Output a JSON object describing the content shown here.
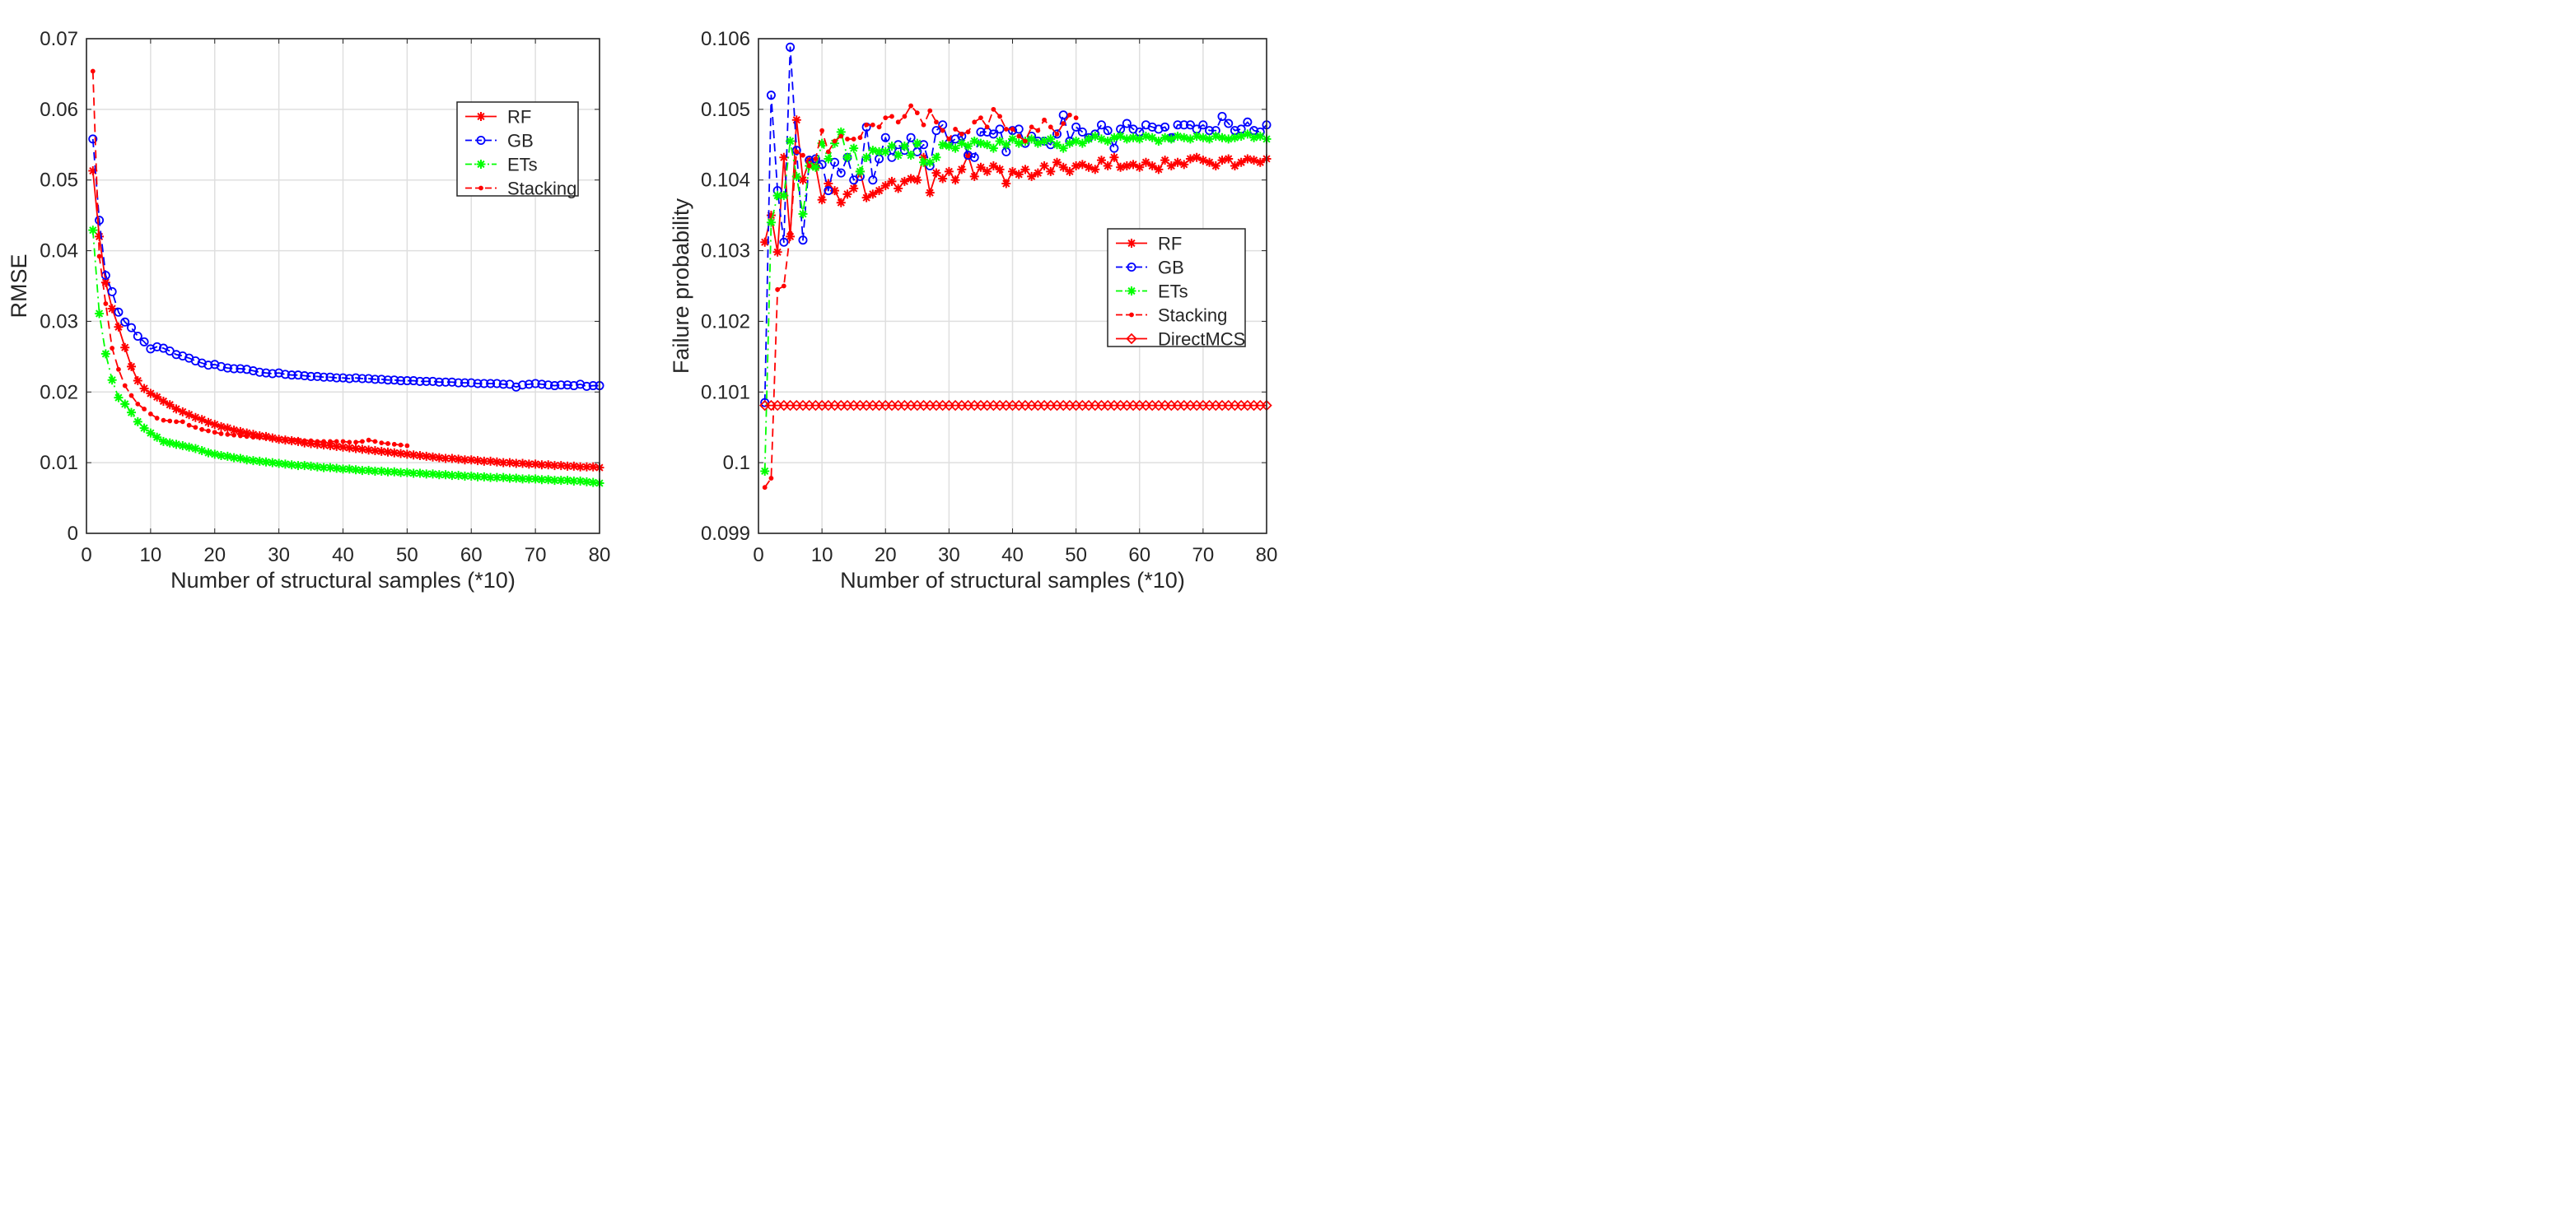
{
  "chart_data": [
    {
      "type": "line",
      "title": "",
      "xlabel": "Number of structural samples (*10)",
      "ylabel": "RMSE",
      "xlim": [
        0,
        80
      ],
      "ylim": [
        0,
        0.07
      ],
      "xticks": [
        0,
        10,
        20,
        30,
        40,
        50,
        60,
        70,
        80
      ],
      "xtick_labels": [
        "0",
        "10",
        "20",
        "30",
        "40",
        "50",
        "60",
        "70",
        "80"
      ],
      "yticks": [
        0,
        0.01,
        0.02,
        0.03,
        0.04,
        0.05,
        0.06,
        0.07
      ],
      "ytick_labels": [
        "0",
        "0.01",
        "0.02",
        "0.03",
        "0.04",
        "0.05",
        "0.06",
        "0.07"
      ],
      "grid": true,
      "legend_position": "top-right",
      "series": [
        {
          "name": "RF",
          "color": "#ff0000",
          "line": "solid",
          "marker": "asterisk",
          "x_start": 1,
          "values": [
            0.0513,
            0.042,
            0.0355,
            0.0318,
            0.0292,
            0.0263,
            0.0236,
            0.0216,
            0.0205,
            0.0198,
            0.0193,
            0.0187,
            0.0182,
            0.0176,
            0.0172,
            0.0168,
            0.0164,
            0.0161,
            0.0157,
            0.0154,
            0.0151,
            0.0149,
            0.0146,
            0.0144,
            0.0142,
            0.014,
            0.0138,
            0.0137,
            0.0135,
            0.0133,
            0.0132,
            0.0131,
            0.013,
            0.0128,
            0.0127,
            0.0126,
            0.0125,
            0.0124,
            0.0123,
            0.0122,
            0.0121,
            0.012,
            0.0119,
            0.0118,
            0.0117,
            0.0116,
            0.0115,
            0.0114,
            0.0113,
            0.0112,
            0.0111,
            0.011,
            0.0109,
            0.0108,
            0.0107,
            0.0106,
            0.0106,
            0.0105,
            0.0104,
            0.0104,
            0.0103,
            0.0102,
            0.0102,
            0.0101,
            0.01,
            0.01,
            0.0099,
            0.0099,
            0.0098,
            0.0098,
            0.0097,
            0.0097,
            0.0096,
            0.0096,
            0.0095,
            0.0095,
            0.0094,
            0.0094,
            0.0094,
            0.0093
          ]
        },
        {
          "name": "GB",
          "color": "#0000ff",
          "line": "dashed",
          "marker": "circle",
          "x_start": 1,
          "values": [
            0.0558,
            0.0443,
            0.0365,
            0.0342,
            0.0313,
            0.0299,
            0.0291,
            0.0279,
            0.0271,
            0.0261,
            0.0264,
            0.0262,
            0.0258,
            0.0253,
            0.0251,
            0.0248,
            0.0244,
            0.0241,
            0.0238,
            0.0239,
            0.0236,
            0.0234,
            0.0233,
            0.0233,
            0.0232,
            0.023,
            0.0228,
            0.0227,
            0.0226,
            0.0227,
            0.0225,
            0.0224,
            0.0224,
            0.0223,
            0.0222,
            0.0222,
            0.0221,
            0.0221,
            0.022,
            0.022,
            0.0219,
            0.022,
            0.0219,
            0.0219,
            0.0218,
            0.0218,
            0.0217,
            0.0217,
            0.0216,
            0.0216,
            0.0216,
            0.0215,
            0.0215,
            0.0215,
            0.0214,
            0.0214,
            0.0214,
            0.0213,
            0.0213,
            0.0213,
            0.0212,
            0.0212,
            0.0212,
            0.0212,
            0.0211,
            0.0211,
            0.0207,
            0.021,
            0.0211,
            0.0212,
            0.0211,
            0.021,
            0.0209,
            0.021,
            0.021,
            0.0209,
            0.0211,
            0.0208,
            0.0209,
            0.0209
          ]
        },
        {
          "name": "ETs",
          "color": "#00ff00",
          "line": "dashdot",
          "marker": "asterisk",
          "x_start": 1,
          "values": [
            0.0429,
            0.0311,
            0.0254,
            0.0217,
            0.0192,
            0.0183,
            0.0171,
            0.0158,
            0.0149,
            0.0142,
            0.0136,
            0.013,
            0.0128,
            0.0126,
            0.0124,
            0.0122,
            0.012,
            0.0117,
            0.0114,
            0.0112,
            0.011,
            0.0109,
            0.0107,
            0.0106,
            0.0104,
            0.0103,
            0.0102,
            0.0101,
            0.01,
            0.0099,
            0.0098,
            0.0097,
            0.0096,
            0.0096,
            0.0095,
            0.0094,
            0.0093,
            0.0093,
            0.0092,
            0.0091,
            0.0091,
            0.009,
            0.0089,
            0.0089,
            0.0088,
            0.0088,
            0.0087,
            0.0087,
            0.0086,
            0.0086,
            0.0085,
            0.0085,
            0.0084,
            0.0084,
            0.0083,
            0.0083,
            0.0082,
            0.0082,
            0.0081,
            0.0081,
            0.008,
            0.008,
            0.0079,
            0.0079,
            0.0079,
            0.0078,
            0.0078,
            0.0077,
            0.0077,
            0.0077,
            0.0076,
            0.0076,
            0.0075,
            0.0075,
            0.0075,
            0.0074,
            0.0074,
            0.0073,
            0.0072,
            0.0071
          ]
        },
        {
          "name": "Stacking",
          "color": "#ff0000",
          "line": "dashed",
          "marker": "point",
          "x_start": 1,
          "values": [
            0.0654,
            0.0392,
            0.0325,
            0.0262,
            0.0232,
            0.0209,
            0.0195,
            0.0183,
            0.0176,
            0.0169,
            0.0163,
            0.016,
            0.0159,
            0.0158,
            0.0158,
            0.0153,
            0.015,
            0.0147,
            0.0145,
            0.0143,
            0.0141,
            0.014,
            0.0139,
            0.0138,
            0.0137,
            0.0136,
            0.0136,
            0.0135,
            0.0134,
            0.0133,
            0.0133,
            0.0132,
            0.0132,
            0.0131,
            0.0131,
            0.013,
            0.013,
            0.013,
            0.013,
            0.013,
            0.0129,
            0.0129,
            0.013,
            0.0132,
            0.013,
            0.0128,
            0.0127,
            0.0126,
            0.0125,
            0.0124
          ]
        }
      ]
    },
    {
      "type": "line",
      "title": "",
      "xlabel": "Number of structural samples (*10)",
      "ylabel": "Failure probability",
      "xlim": [
        0,
        80
      ],
      "ylim": [
        0.099,
        0.106
      ],
      "xticks": [
        0,
        10,
        20,
        30,
        40,
        50,
        60,
        70,
        80
      ],
      "xtick_labels": [
        "0",
        "10",
        "20",
        "30",
        "40",
        "50",
        "60",
        "70",
        "80"
      ],
      "yticks": [
        0.099,
        0.1,
        0.101,
        0.102,
        0.103,
        0.104,
        0.105,
        0.106
      ],
      "ytick_labels": [
        "0.099",
        "0.1",
        "0.101",
        "0.102",
        "0.103",
        "0.104",
        "0.105",
        "0.106"
      ],
      "grid": true,
      "legend_position": "center-right",
      "series": [
        {
          "name": "RF",
          "color": "#ff0000",
          "line": "solid",
          "marker": "asterisk",
          "x_start": 1,
          "values": [
            0.10312,
            0.1035,
            0.10298,
            0.10432,
            0.1032,
            0.10485,
            0.104,
            0.10428,
            0.1042,
            0.10372,
            0.10395,
            0.10385,
            0.10368,
            0.1038,
            0.10388,
            0.10412,
            0.10375,
            0.1038,
            0.10385,
            0.10392,
            0.10398,
            0.10388,
            0.10398,
            0.10402,
            0.104,
            0.10432,
            0.10382,
            0.1041,
            0.10402,
            0.10412,
            0.104,
            0.10415,
            0.10435,
            0.10405,
            0.10418,
            0.10412,
            0.1042,
            0.10415,
            0.10395,
            0.10412,
            0.10408,
            0.10415,
            0.10405,
            0.1041,
            0.1042,
            0.10412,
            0.10425,
            0.10418,
            0.10412,
            0.1042,
            0.10422,
            0.10418,
            0.10415,
            0.10428,
            0.1042,
            0.10432,
            0.10418,
            0.1042,
            0.10422,
            0.10418,
            0.10425,
            0.1042,
            0.10415,
            0.10428,
            0.1042,
            0.10425,
            0.10422,
            0.1043,
            0.10432,
            0.10428,
            0.10425,
            0.1042,
            0.10428,
            0.1043,
            0.1042,
            0.10425,
            0.1043,
            0.10428,
            0.10425,
            0.1043
          ]
        },
        {
          "name": "GB",
          "color": "#0000ff",
          "line": "dashed",
          "marker": "circle",
          "x_start": 1,
          "values": [
            0.10085,
            0.1052,
            0.10385,
            0.10312,
            0.10588,
            0.10442,
            0.10315,
            0.10428,
            0.1043,
            0.10422,
            0.10385,
            0.10425,
            0.1041,
            0.10432,
            0.104,
            0.10405,
            0.10475,
            0.104,
            0.1043,
            0.1046,
            0.10432,
            0.1045,
            0.10442,
            0.1046,
            0.1044,
            0.1045,
            0.1042,
            0.1047,
            0.10478,
            0.10452,
            0.10458,
            0.10462,
            0.10435,
            0.10432,
            0.10468,
            0.10468,
            0.10465,
            0.10472,
            0.1044,
            0.1047,
            0.10472,
            0.10452,
            0.10462,
            0.10455,
            0.10455,
            0.1045,
            0.10465,
            0.10492,
            0.10455,
            0.10475,
            0.10468,
            0.1046,
            0.10465,
            0.10478,
            0.1047,
            0.10445,
            0.10472,
            0.1048,
            0.10472,
            0.10468,
            0.10478,
            0.10475,
            0.10472,
            0.10475,
            0.1046,
            0.10478,
            0.10478,
            0.10478,
            0.10472,
            0.10478,
            0.1047,
            0.1047,
            0.1049,
            0.1048,
            0.1047,
            0.10472,
            0.10482,
            0.1047,
            0.10468,
            0.10478
          ]
        },
        {
          "name": "ETs",
          "color": "#00ff00",
          "line": "dashdot",
          "marker": "asterisk",
          "x_start": 1,
          "values": [
            0.09988,
            0.1034,
            0.10378,
            0.10378,
            0.10455,
            0.10405,
            0.10352,
            0.1042,
            0.10418,
            0.10452,
            0.1043,
            0.10452,
            0.10468,
            0.10432,
            0.10445,
            0.10412,
            0.10432,
            0.10442,
            0.1044,
            0.1044,
            0.10448,
            0.10435,
            0.10448,
            0.10435,
            0.10452,
            0.10425,
            0.10425,
            0.10432,
            0.1045,
            0.10448,
            0.10445,
            0.10452,
            0.10448,
            0.10455,
            0.10452,
            0.1045,
            0.10445,
            0.10455,
            0.1045,
            0.10458,
            0.10452,
            0.10455,
            0.10458,
            0.10452,
            0.10455,
            0.10458,
            0.1045,
            0.10445,
            0.10452,
            0.10455,
            0.10452,
            0.10458,
            0.10462,
            0.10458,
            0.10455,
            0.1046,
            0.10462,
            0.10458,
            0.1046,
            0.10458,
            0.10462,
            0.1046,
            0.10455,
            0.1046,
            0.10458,
            0.10462,
            0.1046,
            0.10458,
            0.10462,
            0.1046,
            0.10458,
            0.10462,
            0.1046,
            0.10458,
            0.1046,
            0.10462,
            0.10465,
            0.1046,
            0.10462,
            0.10458
          ]
        },
        {
          "name": "Stacking",
          "color": "#ff0000",
          "line": "dashed",
          "marker": "point",
          "x_start": 1,
          "values": [
            0.09965,
            0.09978,
            0.10245,
            0.1025,
            0.10325,
            0.1044,
            0.10435,
            0.1042,
            0.1043,
            0.1047,
            0.1044,
            0.10455,
            0.10462,
            0.10458,
            0.10458,
            0.1046,
            0.10478,
            0.10478,
            0.10475,
            0.10488,
            0.1049,
            0.10482,
            0.1049,
            0.10505,
            0.10495,
            0.10478,
            0.10498,
            0.10482,
            0.1047,
            0.10458,
            0.10472,
            0.10465,
            0.10468,
            0.10482,
            0.10488,
            0.10475,
            0.105,
            0.1049,
            0.10472,
            0.10472,
            0.10462,
            0.10455,
            0.10475,
            0.1047,
            0.10485,
            0.10475,
            0.10465,
            0.1048,
            0.10492,
            0.10488
          ]
        },
        {
          "name": "DirectMCS",
          "color": "#ff0000",
          "line": "solid",
          "marker": "diamond",
          "x_start": 1,
          "constant": 0.10081,
          "values": [
            0.10081,
            0.10081,
            0.10081,
            0.10081,
            0.10081,
            0.10081,
            0.10081,
            0.10081,
            0.10081,
            0.10081,
            0.10081,
            0.10081,
            0.10081,
            0.10081,
            0.10081,
            0.10081,
            0.10081,
            0.10081,
            0.10081,
            0.10081,
            0.10081,
            0.10081,
            0.10081,
            0.10081,
            0.10081,
            0.10081,
            0.10081,
            0.10081,
            0.10081,
            0.10081,
            0.10081,
            0.10081,
            0.10081,
            0.10081,
            0.10081,
            0.10081,
            0.10081,
            0.10081,
            0.10081,
            0.10081,
            0.10081,
            0.10081,
            0.10081,
            0.10081,
            0.10081,
            0.10081,
            0.10081,
            0.10081,
            0.10081,
            0.10081,
            0.10081,
            0.10081,
            0.10081,
            0.10081,
            0.10081,
            0.10081,
            0.10081,
            0.10081,
            0.10081,
            0.10081,
            0.10081,
            0.10081,
            0.10081,
            0.10081,
            0.10081,
            0.10081,
            0.10081,
            0.10081,
            0.10081,
            0.10081,
            0.10081,
            0.10081,
            0.10081,
            0.10081,
            0.10081,
            0.10081,
            0.10081,
            0.10081,
            0.10081,
            0.10081
          ]
        }
      ]
    }
  ]
}
